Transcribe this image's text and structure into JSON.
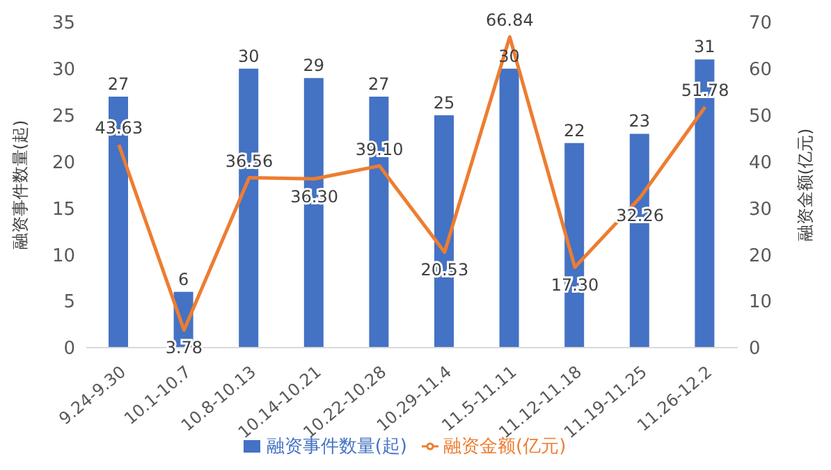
{
  "chart_data": {
    "type": "bar",
    "categories": [
      "9.24-9.30",
      "10.1-10.7",
      "10.8-10.13",
      "10.14-10.21",
      "10.22-10.28",
      "10.29-11.4",
      "11.5-11.11",
      "11.12-11.18",
      "11.19-11.25",
      "11.26-12.2"
    ],
    "series": [
      {
        "name": "融资事件数量(起)",
        "color": "#4472c4",
        "values": [
          27,
          6,
          30,
          29,
          27,
          25,
          30,
          22,
          23,
          31
        ]
      },
      {
        "name": "融资金额(亿元)",
        "type": "line",
        "axis": "y2",
        "color": "#ed7d31",
        "values": [
          43.63,
          3.78,
          36.56,
          36.3,
          39.1,
          20.53,
          66.84,
          17.3,
          32.26,
          51.78
        ],
        "value_labels": [
          "43.63",
          "3.78",
          "36.56",
          "36.30",
          "39.10",
          "20.53",
          "66.84",
          "17.30",
          "32.26",
          "51.78"
        ]
      }
    ],
    "ylabel": "融资事件数量(起)",
    "y2label": "融资金额(亿元)",
    "ylim": [
      0,
      35
    ],
    "yticks": [
      0,
      5,
      10,
      15,
      20,
      25,
      30,
      35
    ],
    "y2lim": [
      0,
      70
    ],
    "y2ticks": [
      0,
      10,
      20,
      30,
      40,
      50,
      60,
      70
    ],
    "legend": "bottom",
    "data_labels": true,
    "marker": "none"
  }
}
